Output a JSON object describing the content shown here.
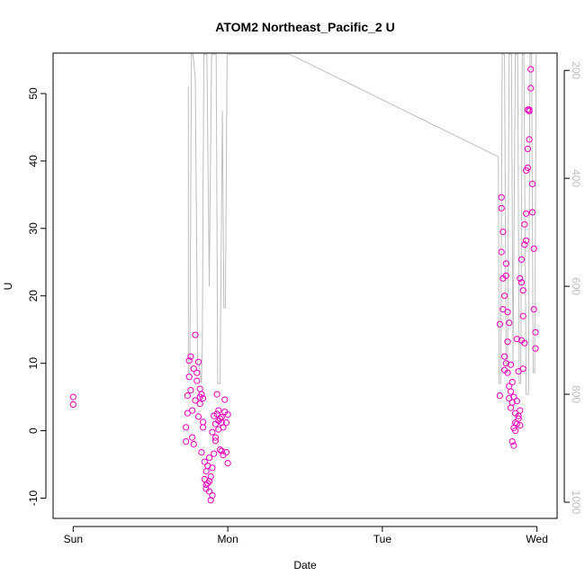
{
  "chart_data": {
    "type": "scatter",
    "title": "ATOM2 Northeast_Pacific_2 U",
    "xlabel": "Date",
    "ylabel": "U",
    "y2label": "",
    "x_ticks": [
      {
        "x": 0,
        "label": "Sun"
      },
      {
        "x": 1,
        "label": "Mon"
      },
      {
        "x": 2,
        "label": "Tue"
      },
      {
        "x": 3,
        "label": "Wed"
      }
    ],
    "y_ticks": [
      -10,
      0,
      10,
      20,
      30,
      40,
      50
    ],
    "y2_ticks": [
      200,
      400,
      600,
      800,
      1000
    ],
    "xlim": [
      -0.13,
      3.13
    ],
    "ylim": [
      -13,
      56
    ],
    "y2lim": [
      1030,
      168
    ],
    "y2_reversed": true,
    "grid": false,
    "colors": {
      "points": "#ee00bb",
      "line": "#bebebe",
      "axis": "#000000",
      "secondary_axis": "#bebebe"
    },
    "series": [
      {
        "type": "scatter",
        "values": [
          [
            0.0,
            5.0
          ],
          [
            0.0,
            3.9
          ],
          [
            0.73,
            0.5
          ],
          [
            0.73,
            -1.6
          ],
          [
            0.74,
            2.6
          ],
          [
            0.74,
            5.2
          ],
          [
            0.75,
            8.0
          ],
          [
            0.75,
            10.4
          ],
          [
            0.76,
            6.0
          ],
          [
            0.76,
            11.0
          ],
          [
            0.77,
            3.0
          ],
          [
            0.77,
            -1.0
          ],
          [
            0.78,
            9.2
          ],
          [
            0.78,
            -2.0
          ],
          [
            0.79,
            14.2
          ],
          [
            0.79,
            4.5
          ],
          [
            0.8,
            7.4
          ],
          [
            0.8,
            8.6
          ],
          [
            0.81,
            10.2
          ],
          [
            0.81,
            2.1
          ],
          [
            0.82,
            6.2
          ],
          [
            0.82,
            4.0
          ],
          [
            0.83,
            5.4
          ],
          [
            0.83,
            -3.2
          ],
          [
            0.84,
            0.5
          ],
          [
            0.84,
            4.8
          ],
          [
            0.85,
            -4.6
          ],
          [
            0.85,
            -7.2
          ],
          [
            0.86,
            -6.0
          ],
          [
            0.86,
            -8.6
          ],
          [
            0.87,
            -7.8
          ],
          [
            0.87,
            -5.2
          ],
          [
            0.88,
            -9.0
          ],
          [
            0.88,
            -4.0
          ],
          [
            0.89,
            -10.3
          ],
          [
            0.89,
            -6.8
          ],
          [
            0.9,
            -9.6
          ],
          [
            0.9,
            -0.2
          ],
          [
            0.91,
            2.2
          ],
          [
            0.91,
            -3.4
          ],
          [
            0.92,
            1.0
          ],
          [
            0.92,
            -1.0
          ],
          [
            0.93,
            5.4
          ],
          [
            0.93,
            2.5
          ],
          [
            0.94,
            3.0
          ],
          [
            0.94,
            0.2
          ],
          [
            0.95,
            -2.8
          ],
          [
            0.95,
            1.8
          ],
          [
            0.96,
            -3.0
          ],
          [
            0.96,
            1.2
          ],
          [
            0.97,
            0.5
          ],
          [
            0.97,
            -3.6
          ],
          [
            0.98,
            2.8
          ],
          [
            0.98,
            4.6
          ],
          [
            0.99,
            -3.2
          ],
          [
            0.99,
            1.2
          ],
          [
            1.0,
            2.4
          ],
          [
            1.0,
            -4.8
          ],
          [
            0.88,
            -7.5
          ],
          [
            0.86,
            -8.0
          ],
          [
            0.92,
            -1.5
          ],
          [
            0.84,
            1.3
          ],
          [
            0.9,
            -5.5
          ],
          [
            0.94,
            1.5
          ],
          [
            0.96,
            2.0
          ],
          [
            0.82,
            5.0
          ],
          [
            2.76,
            15.8
          ],
          [
            2.76,
            5.2
          ],
          [
            2.77,
            34.6
          ],
          [
            2.77,
            26.5
          ],
          [
            2.78,
            29.5
          ],
          [
            2.78,
            18.0
          ],
          [
            2.79,
            11.0
          ],
          [
            2.79,
            9.0
          ],
          [
            2.8,
            23.0
          ],
          [
            2.8,
            24.8
          ],
          [
            2.81,
            17.6
          ],
          [
            2.81,
            13.2
          ],
          [
            2.82,
            6.6
          ],
          [
            2.82,
            4.8
          ],
          [
            2.83,
            5.8
          ],
          [
            2.83,
            3.4
          ],
          [
            2.84,
            -1.6
          ],
          [
            2.84,
            7.2
          ],
          [
            2.85,
            -2.2
          ],
          [
            2.85,
            0.4
          ],
          [
            2.86,
            1.2
          ],
          [
            2.86,
            2.6
          ],
          [
            2.87,
            1.0
          ],
          [
            2.87,
            4.4
          ],
          [
            2.88,
            1.8
          ],
          [
            2.88,
            2.2
          ],
          [
            2.89,
            3.0
          ],
          [
            2.89,
            0.8
          ],
          [
            2.9,
            22.0
          ],
          [
            2.9,
            25.4
          ],
          [
            2.91,
            20.8
          ],
          [
            2.91,
            17.0
          ],
          [
            2.92,
            13.0
          ],
          [
            2.92,
            30.6
          ],
          [
            2.93,
            32.2
          ],
          [
            2.93,
            28.2
          ],
          [
            2.94,
            39.0
          ],
          [
            2.94,
            41.8
          ],
          [
            2.95,
            43.2
          ],
          [
            2.95,
            47.4
          ],
          [
            2.96,
            50.8
          ],
          [
            2.96,
            53.6
          ],
          [
            2.97,
            36.6
          ],
          [
            2.97,
            32.4
          ],
          [
            2.98,
            27.0
          ],
          [
            2.98,
            18.0
          ],
          [
            2.99,
            14.6
          ],
          [
            2.99,
            12.2
          ],
          [
            2.77,
            33.0
          ],
          [
            2.78,
            22.6
          ],
          [
            2.79,
            20.0
          ],
          [
            2.8,
            10.0
          ],
          [
            2.81,
            8.6
          ],
          [
            2.82,
            16.0
          ],
          [
            2.83,
            9.8
          ],
          [
            2.84,
            4.2
          ],
          [
            2.85,
            5.0
          ],
          [
            2.86,
            0.0
          ],
          [
            2.87,
            13.6
          ],
          [
            2.88,
            8.8
          ],
          [
            2.89,
            22.6
          ],
          [
            2.9,
            13.4
          ],
          [
            2.91,
            9.2
          ],
          [
            2.92,
            27.6
          ],
          [
            2.93,
            38.6
          ],
          [
            2.94,
            47.6
          ],
          [
            2.95,
            47.6
          ]
        ]
      },
      {
        "type": "line",
        "axis": "secondary",
        "values": [
          [
            0.745,
            230
          ],
          [
            0.745,
            760
          ],
          [
            0.755,
            760
          ],
          [
            0.765,
            170
          ],
          [
            0.775,
            170
          ],
          [
            0.79,
            215
          ],
          [
            0.805,
            745
          ],
          [
            0.815,
            745
          ],
          [
            0.83,
            780
          ],
          [
            0.835,
            700
          ],
          [
            0.845,
            170
          ],
          [
            0.865,
            170
          ],
          [
            0.88,
            600
          ],
          [
            0.895,
            170
          ],
          [
            0.925,
            170
          ],
          [
            0.935,
            780
          ],
          [
            0.95,
            780
          ],
          [
            0.965,
            275
          ],
          [
            0.975,
            640
          ],
          [
            0.985,
            640
          ],
          [
            0.995,
            170
          ],
          [
            1.0,
            170
          ],
          [
            1.005,
            170
          ],
          [
            1.4,
            170
          ],
          [
            2.75,
            360
          ],
          [
            2.755,
            780
          ],
          [
            2.765,
            780
          ],
          [
            2.775,
            170
          ],
          [
            2.79,
            170
          ],
          [
            2.8,
            745
          ],
          [
            2.81,
            745
          ],
          [
            2.82,
            170
          ],
          [
            2.835,
            170
          ],
          [
            2.845,
            745
          ],
          [
            2.86,
            170
          ],
          [
            2.875,
            170
          ],
          [
            2.885,
            780
          ],
          [
            2.895,
            780
          ],
          [
            2.905,
            170
          ],
          [
            2.915,
            170
          ],
          [
            2.93,
            800
          ],
          [
            2.945,
            800
          ],
          [
            2.955,
            170
          ],
          [
            2.965,
            170
          ],
          [
            2.975,
            760
          ],
          [
            2.985,
            760
          ],
          [
            2.995,
            170
          ]
        ]
      }
    ]
  }
}
